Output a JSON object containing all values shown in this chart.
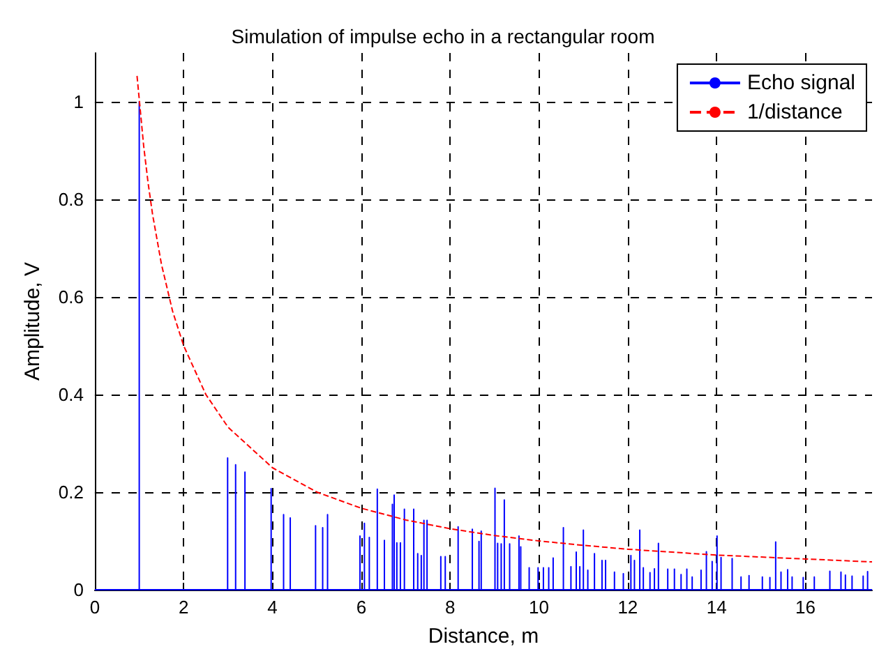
{
  "chart_data": {
    "type": "line",
    "title": "Simulation of impulse echo in a rectangular room",
    "xlabel": "Distance, m",
    "ylabel": "Amplitude, V",
    "xlim": [
      0,
      17.5
    ],
    "xticks": [
      0,
      2,
      4,
      6,
      8,
      10,
      12,
      14,
      16
    ],
    "ylim": [
      0,
      1.1
    ],
    "yticks": [
      0,
      0.2,
      0.4,
      0.6,
      0.8,
      1
    ],
    "grid": true,
    "legend": "top right",
    "series": [
      {
        "name": "Echo signal",
        "color": "#0000ff",
        "line_style": "solid",
        "x": [
          0,
          1,
          1,
          1,
          2.99,
          2.99,
          2.99,
          3.17,
          3.17,
          3.17,
          3.38,
          3.38,
          3.38,
          3.97,
          3.97,
          3.97,
          4.25,
          4.25,
          4.25,
          4.4,
          4.4,
          4.4,
          4.97,
          4.97,
          4.97,
          5.13,
          5.13,
          5.13,
          5.24,
          5.24,
          5.24,
          5.97,
          5.97,
          5.97,
          6.07,
          6.07,
          6.07,
          6.18,
          6.18,
          6.18,
          6.36,
          6.36,
          6.36,
          6.52,
          6.52,
          6.52,
          6.7,
          6.7,
          6.7,
          6.74,
          6.74,
          6.74,
          6.8,
          6.8,
          6.8,
          6.88,
          6.88,
          6.88,
          6.97,
          6.97,
          6.97,
          7.18,
          7.18,
          7.18,
          7.27,
          7.27,
          7.27,
          7.35,
          7.35,
          7.35,
          7.41,
          7.41,
          7.41,
          7.48,
          7.48,
          7.48,
          7.79,
          7.79,
          7.79,
          7.89,
          7.89,
          7.89,
          8.18,
          8.18,
          8.18,
          8.5,
          8.5,
          8.5,
          8.65,
          8.65,
          8.65,
          8.7,
          8.7,
          8.7,
          9.01,
          9.01,
          9.01,
          9.07,
          9.07,
          9.07,
          9.15,
          9.15,
          9.15,
          9.22,
          9.22,
          9.22,
          9.34,
          9.34,
          9.34,
          9.55,
          9.55,
          9.55,
          9.59,
          9.59,
          9.59,
          9.78,
          9.78,
          9.78,
          9.98,
          9.98,
          9.98,
          10.1,
          10.1,
          10.1,
          10.22,
          10.22,
          10.22,
          10.32,
          10.32,
          10.32,
          10.55,
          10.55,
          10.55,
          10.72,
          10.72,
          10.72,
          10.84,
          10.84,
          10.84,
          10.92,
          10.92,
          10.92,
          11,
          11,
          11,
          11.1,
          11.1,
          11.1,
          11.25,
          11.25,
          11.25,
          11.42,
          11.42,
          11.42,
          11.5,
          11.5,
          11.5,
          11.7,
          11.7,
          11.7,
          11.9,
          11.9,
          11.9,
          12.07,
          12.07,
          12.07,
          12.15,
          12.15,
          12.15,
          12.27,
          12.27,
          12.27,
          12.35,
          12.35,
          12.35,
          12.5,
          12.5,
          12.5,
          12.6,
          12.6,
          12.6,
          12.69,
          12.69,
          12.69,
          12.9,
          12.9,
          12.9,
          13.05,
          13.05,
          13.05,
          13.2,
          13.2,
          13.2,
          13.33,
          13.33,
          13.33,
          13.45,
          13.45,
          13.45,
          13.65,
          13.65,
          13.65,
          13.77,
          13.77,
          13.77,
          13.9,
          13.9,
          13.9,
          14.01,
          14.01,
          14.01,
          14.1,
          14.1,
          14.1,
          14.35,
          14.35,
          14.35,
          14.55,
          14.55,
          14.55,
          14.73,
          14.73,
          14.73,
          15.03,
          15.03,
          15.03,
          15.2,
          15.2,
          15.2,
          15.33,
          15.33,
          15.33,
          15.45,
          15.45,
          15.45,
          15.6,
          15.6,
          15.6,
          15.7,
          15.7,
          15.7,
          15.95,
          15.95,
          15.95,
          16.2,
          16.2,
          16.2,
          16.55,
          16.55,
          16.55,
          16.8,
          16.8,
          16.8,
          16.9,
          16.9,
          16.9,
          17.05,
          17.05,
          17.05,
          17.3,
          17.3,
          17.3,
          17.4,
          17.4,
          17.4,
          17.5
        ],
        "values": [
          0,
          0,
          1,
          0,
          0,
          0.27,
          0,
          0,
          0.256,
          0,
          0,
          0.241,
          0,
          0,
          0.207,
          0,
          0,
          0.154,
          0,
          0,
          0.147,
          0,
          0,
          0.131,
          0,
          0,
          0.127,
          0,
          0,
          0.154,
          0,
          0,
          0.11,
          0,
          0,
          0.136,
          0,
          0,
          0.107,
          0,
          0,
          0.206,
          0,
          0,
          0.101,
          0,
          0,
          0.175,
          0,
          0,
          0.194,
          0,
          0,
          0.096,
          0,
          0,
          0.096,
          0,
          0,
          0.165,
          0,
          0,
          0.165,
          0,
          0,
          0.074,
          0,
          0,
          0.07,
          0,
          0,
          0.142,
          0,
          0,
          0.142,
          0,
          0,
          0.068,
          0,
          0,
          0.068,
          0,
          0,
          0.129,
          0,
          0,
          0.124,
          0,
          0,
          0.099,
          0,
          0,
          0.12,
          0,
          0,
          0.208,
          0,
          0,
          0.095,
          0,
          0,
          0.094,
          0,
          0,
          0.184,
          0,
          0,
          0.094,
          0,
          0,
          0.11,
          0,
          0,
          0.088,
          0,
          0,
          0.045,
          0,
          0,
          0.045,
          0,
          0,
          0.045,
          0,
          0,
          0.045,
          0,
          0,
          0.065,
          0,
          0,
          0.127,
          0,
          0,
          0.047,
          0,
          0,
          0.077,
          0,
          0,
          0.047,
          0,
          0,
          0.122,
          0,
          0,
          0.04,
          0,
          0,
          0.074,
          0,
          0,
          0.06,
          0,
          0,
          0.06,
          0,
          0,
          0.036,
          0,
          0,
          0.033,
          0,
          0,
          0.07,
          0,
          0,
          0.06,
          0,
          0,
          0.122,
          0,
          0,
          0.045,
          0,
          0,
          0.035,
          0,
          0,
          0.043,
          0,
          0,
          0.095,
          0,
          0,
          0.042,
          0,
          0,
          0.042,
          0,
          0,
          0.031,
          0,
          0,
          0.042,
          0,
          0,
          0.026,
          0,
          0,
          0.04,
          0,
          0,
          0.078,
          0,
          0,
          0.058,
          0,
          0,
          0.11,
          0,
          0,
          0.066,
          0,
          0,
          0.064,
          0,
          0,
          0.026,
          0,
          0,
          0.029,
          0,
          0,
          0.026,
          0,
          0,
          0.025,
          0,
          0,
          0.098,
          0,
          0,
          0.036,
          0,
          0,
          0.041,
          0,
          0,
          0.026,
          0,
          0,
          0.025,
          0,
          0,
          0.026,
          0,
          0,
          0.038,
          0,
          0,
          0.036,
          0,
          0,
          0.03,
          0,
          0,
          0.028,
          0,
          0,
          0.028,
          0,
          0,
          0.037,
          0,
          0
        ]
      },
      {
        "name": "1/distance",
        "color": "#ff0000",
        "line_style": "dashed",
        "x": [
          0.95,
          1.1,
          1.2,
          1.3,
          1.5,
          1.75,
          2,
          2.5,
          3,
          4,
          5,
          6,
          7,
          8,
          9,
          10,
          11,
          12,
          13,
          14,
          15,
          16,
          17.5
        ],
        "values": [
          1.053,
          0.909,
          0.833,
          0.769,
          0.667,
          0.571,
          0.5,
          0.4,
          0.333,
          0.25,
          0.2,
          0.167,
          0.143,
          0.125,
          0.111,
          0.1,
          0.091,
          0.083,
          0.077,
          0.071,
          0.067,
          0.063,
          0.057
        ]
      }
    ]
  }
}
